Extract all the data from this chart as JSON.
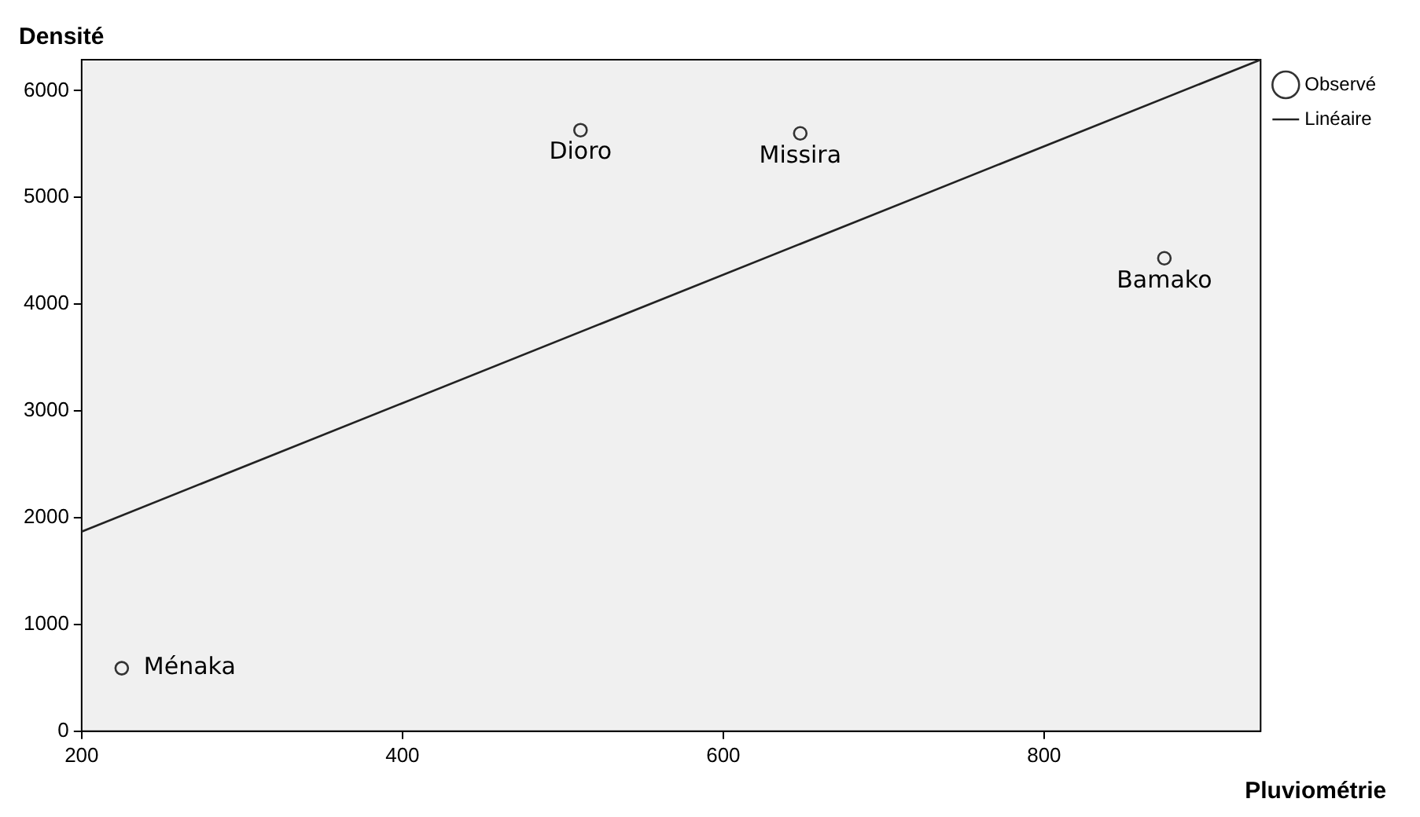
{
  "chart_data": {
    "type": "scatter",
    "xlabel": "Pluviométrie",
    "ylabel": "Densité",
    "xlim": [
      200,
      935
    ],
    "ylim": [
      0,
      6290
    ],
    "xticks": [
      200,
      400,
      600,
      800
    ],
    "yticks": [
      0,
      1000,
      2000,
      3000,
      4000,
      5000,
      6000
    ],
    "legend": "top right",
    "series": [
      {
        "name": "Observé",
        "type": "scatter",
        "marker": "circle",
        "color": "#333333",
        "x": [
          225,
          511,
          648,
          875
        ],
        "values": [
          590,
          5630,
          5600,
          4430
        ]
      },
      {
        "name": "Linéaire",
        "type": "line",
        "marker": "none",
        "color": "#222222",
        "x": [
          200,
          935
        ],
        "values": [
          1870,
          6290
        ]
      }
    ],
    "annotations": [
      {
        "text": "Ménaka",
        "x": 225,
        "y": 590
      },
      {
        "text": "Dioro",
        "x": 511,
        "y": 5630
      },
      {
        "text": "Missira",
        "x": 648,
        "y": 5600
      },
      {
        "text": "Bamako",
        "x": 875,
        "y": 4430
      }
    ]
  }
}
